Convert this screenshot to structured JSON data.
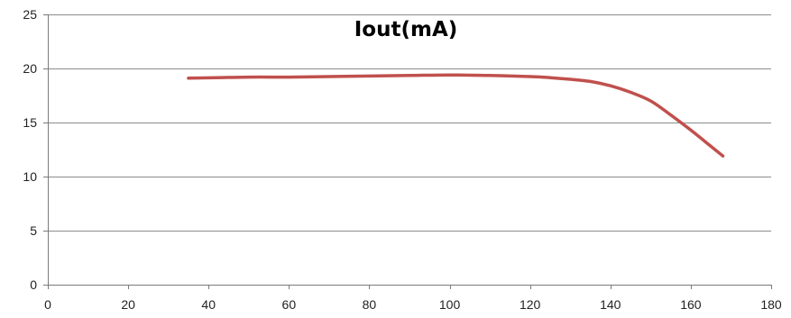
{
  "chart_data": {
    "type": "line",
    "title": "Iout(mA)",
    "xlabel": "",
    "ylabel": "",
    "xlim": [
      0,
      180
    ],
    "ylim": [
      0,
      25
    ],
    "xticks": [
      0,
      20,
      40,
      60,
      80,
      100,
      120,
      140,
      160,
      180
    ],
    "yticks": [
      0,
      5,
      10,
      15,
      20,
      25
    ],
    "grid": "horizontal",
    "legend": "none",
    "series": [
      {
        "color": "#c0504d",
        "x": [
          35,
          50,
          60,
          70,
          80,
          90,
          100,
          110,
          120,
          125,
          130,
          135,
          140,
          145,
          150,
          155,
          160,
          165,
          168
        ],
        "y": [
          19.1,
          19.2,
          19.2,
          19.25,
          19.3,
          19.35,
          19.4,
          19.35,
          19.25,
          19.15,
          19.0,
          18.8,
          18.4,
          17.8,
          17.0,
          15.7,
          14.3,
          12.8,
          11.9
        ]
      }
    ]
  }
}
